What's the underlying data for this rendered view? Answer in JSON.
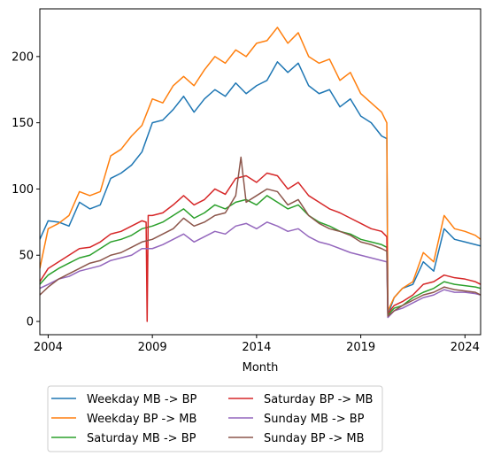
{
  "chart_data": {
    "type": "line",
    "title": "",
    "xlabel": "Month",
    "ylabel": "",
    "xlim": [
      2003.6,
      2024.75
    ],
    "ylim": [
      -10,
      236
    ],
    "xticks": [
      2004,
      2009,
      2014,
      2019,
      2024
    ],
    "yticks": [
      0,
      50,
      100,
      150,
      200
    ],
    "grid": false,
    "legend": {
      "placement": "below",
      "columns": 2
    },
    "series": [
      {
        "name": "Weekday MB -> BP",
        "color": "#1f77b4",
        "x": [
          2003.6,
          2004.0,
          2004.5,
          2005.0,
          2005.5,
          2006.0,
          2006.5,
          2007.0,
          2007.5,
          2008.0,
          2008.5,
          2009.0,
          2009.5,
          2010.0,
          2010.5,
          2011.0,
          2011.5,
          2012.0,
          2012.5,
          2013.0,
          2013.5,
          2014.0,
          2014.5,
          2015.0,
          2015.5,
          2016.0,
          2016.5,
          2017.0,
          2017.5,
          2018.0,
          2018.5,
          2019.0,
          2019.5,
          2020.0,
          2020.25,
          2020.3,
          2020.6,
          2021.0,
          2021.5,
          2022.0,
          2022.5,
          2023.0,
          2023.5,
          2024.0,
          2024.5,
          2024.75
        ],
        "y": [
          62,
          76,
          75,
          72,
          90,
          85,
          88,
          108,
          112,
          118,
          128,
          150,
          152,
          160,
          170,
          158,
          168,
          175,
          170,
          180,
          172,
          178,
          182,
          196,
          188,
          195,
          178,
          172,
          175,
          162,
          168,
          155,
          150,
          140,
          138,
          5,
          18,
          25,
          28,
          45,
          38,
          70,
          62,
          60,
          58,
          57
        ]
      },
      {
        "name": "Weekday BP -> MB",
        "color": "#ff7f0e",
        "x": [
          2003.6,
          2004.0,
          2004.5,
          2005.0,
          2005.5,
          2006.0,
          2006.5,
          2007.0,
          2007.5,
          2008.0,
          2008.5,
          2009.0,
          2009.5,
          2010.0,
          2010.5,
          2011.0,
          2011.5,
          2012.0,
          2012.5,
          2013.0,
          2013.5,
          2014.0,
          2014.5,
          2015.0,
          2015.5,
          2016.0,
          2016.5,
          2017.0,
          2017.5,
          2018.0,
          2018.5,
          2019.0,
          2019.5,
          2020.0,
          2020.25,
          2020.3,
          2020.6,
          2021.0,
          2021.5,
          2022.0,
          2022.5,
          2023.0,
          2023.5,
          2024.0,
          2024.5,
          2024.75
        ],
        "y": [
          40,
          70,
          74,
          80,
          98,
          95,
          98,
          125,
          130,
          140,
          148,
          168,
          165,
          178,
          185,
          178,
          190,
          200,
          195,
          205,
          200,
          210,
          212,
          222,
          210,
          218,
          200,
          195,
          198,
          182,
          188,
          172,
          165,
          158,
          150,
          8,
          18,
          25,
          30,
          52,
          45,
          80,
          70,
          68,
          65,
          62
        ]
      },
      {
        "name": "Saturday MB -> BP",
        "color": "#2ca02c",
        "x": [
          2003.6,
          2004.0,
          2004.5,
          2005.0,
          2005.5,
          2006.0,
          2006.5,
          2007.0,
          2007.5,
          2008.0,
          2008.5,
          2009.0,
          2009.5,
          2010.0,
          2010.5,
          2011.0,
          2011.5,
          2012.0,
          2012.5,
          2013.0,
          2013.5,
          2014.0,
          2014.5,
          2015.0,
          2015.5,
          2016.0,
          2016.5,
          2017.0,
          2017.5,
          2018.0,
          2018.5,
          2019.0,
          2019.5,
          2020.0,
          2020.25,
          2020.3,
          2020.6,
          2021.0,
          2021.5,
          2022.0,
          2022.5,
          2023.0,
          2023.5,
          2024.0,
          2024.5,
          2024.75
        ],
        "y": [
          28,
          35,
          40,
          44,
          48,
          50,
          55,
          60,
          62,
          65,
          70,
          72,
          75,
          80,
          85,
          78,
          82,
          88,
          85,
          90,
          92,
          88,
          95,
          90,
          85,
          88,
          80,
          75,
          72,
          68,
          66,
          62,
          60,
          58,
          56,
          5,
          10,
          12,
          18,
          22,
          25,
          30,
          28,
          27,
          26,
          25
        ]
      },
      {
        "name": "Saturday BP -> MB",
        "color": "#d62728",
        "x": [
          2003.6,
          2004.0,
          2004.5,
          2005.0,
          2005.5,
          2006.0,
          2006.5,
          2007.0,
          2007.5,
          2008.0,
          2008.5,
          2008.7,
          2008.75,
          2008.8,
          2009.0,
          2009.5,
          2010.0,
          2010.5,
          2011.0,
          2011.5,
          2012.0,
          2012.5,
          2013.0,
          2013.5,
          2014.0,
          2014.5,
          2015.0,
          2015.5,
          2016.0,
          2016.5,
          2017.0,
          2017.5,
          2018.0,
          2018.5,
          2019.0,
          2019.5,
          2020.0,
          2020.25,
          2020.3,
          2020.6,
          2021.0,
          2021.5,
          2022.0,
          2022.5,
          2023.0,
          2023.5,
          2024.0,
          2024.5,
          2024.75
        ],
        "y": [
          30,
          40,
          45,
          50,
          55,
          56,
          60,
          66,
          68,
          72,
          76,
          75,
          0,
          80,
          80,
          82,
          88,
          95,
          88,
          92,
          100,
          96,
          108,
          110,
          105,
          112,
          110,
          100,
          105,
          95,
          90,
          85,
          82,
          78,
          74,
          70,
          68,
          64,
          6,
          12,
          15,
          20,
          28,
          30,
          35,
          33,
          32,
          30,
          28
        ]
      },
      {
        "name": "Sunday MB -> BP",
        "color": "#9467bd",
        "x": [
          2003.6,
          2004.0,
          2004.5,
          2005.0,
          2005.5,
          2006.0,
          2006.5,
          2007.0,
          2007.5,
          2008.0,
          2008.5,
          2009.0,
          2009.5,
          2010.0,
          2010.5,
          2011.0,
          2011.5,
          2012.0,
          2012.5,
          2013.0,
          2013.5,
          2014.0,
          2014.5,
          2015.0,
          2015.5,
          2016.0,
          2016.5,
          2017.0,
          2017.5,
          2018.0,
          2018.5,
          2019.0,
          2019.5,
          2020.0,
          2020.25,
          2020.3,
          2020.6,
          2021.0,
          2021.5,
          2022.0,
          2022.5,
          2023.0,
          2023.5,
          2024.0,
          2024.5,
          2024.75
        ],
        "y": [
          25,
          28,
          32,
          34,
          38,
          40,
          42,
          46,
          48,
          50,
          55,
          55,
          58,
          62,
          66,
          60,
          64,
          68,
          66,
          72,
          74,
          70,
          75,
          72,
          68,
          70,
          64,
          60,
          58,
          55,
          52,
          50,
          48,
          46,
          45,
          3,
          8,
          10,
          14,
          18,
          20,
          24,
          22,
          22,
          21,
          20
        ]
      },
      {
        "name": "Sunday BP -> MB",
        "color": "#8c564b",
        "x": [
          2003.6,
          2004.0,
          2004.5,
          2005.0,
          2005.5,
          2006.0,
          2006.5,
          2007.0,
          2007.5,
          2008.0,
          2008.5,
          2009.0,
          2009.5,
          2010.0,
          2010.5,
          2011.0,
          2011.5,
          2012.0,
          2012.5,
          2013.0,
          2013.25,
          2013.5,
          2014.0,
          2014.5,
          2015.0,
          2015.5,
          2016.0,
          2016.5,
          2017.0,
          2017.5,
          2018.0,
          2018.5,
          2019.0,
          2019.5,
          2020.0,
          2020.25,
          2020.3,
          2020.6,
          2021.0,
          2021.5,
          2022.0,
          2022.5,
          2023.0,
          2023.5,
          2024.0,
          2024.5,
          2024.75
        ],
        "y": [
          20,
          26,
          32,
          36,
          40,
          44,
          46,
          50,
          52,
          56,
          60,
          62,
          66,
          70,
          78,
          72,
          75,
          80,
          82,
          95,
          124,
          90,
          95,
          100,
          98,
          88,
          92,
          80,
          74,
          70,
          68,
          65,
          60,
          58,
          55,
          53,
          4,
          8,
          12,
          16,
          20,
          22,
          26,
          24,
          23,
          22,
          20
        ]
      }
    ]
  }
}
